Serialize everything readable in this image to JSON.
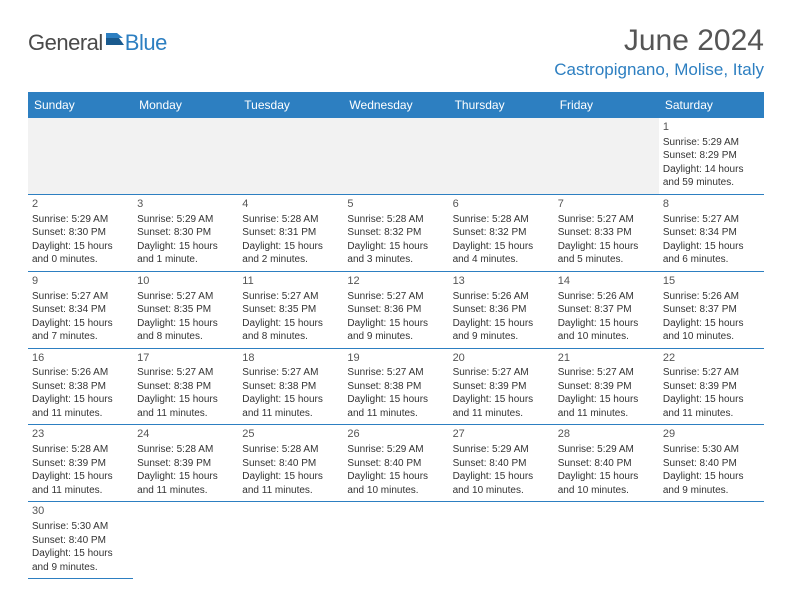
{
  "logo": {
    "word1": "General",
    "word2": "Blue"
  },
  "title": "June 2024",
  "location": "Castropignano, Molise, Italy",
  "colors": {
    "header_bg": "#2d7fc1",
    "header_text": "#ffffff",
    "border": "#2d7fc1",
    "offrow_bg": "#f2f2f2",
    "text": "#333333",
    "brand_blue": "#2d7fc1",
    "brand_gray": "#4a4a4a"
  },
  "day_headers": [
    "Sunday",
    "Monday",
    "Tuesday",
    "Wednesday",
    "Thursday",
    "Friday",
    "Saturday"
  ],
  "weeks": [
    [
      null,
      null,
      null,
      null,
      null,
      null,
      {
        "n": "1",
        "sr": "Sunrise: 5:29 AM",
        "ss": "Sunset: 8:29 PM",
        "dl": "Daylight: 14 hours and 59 minutes."
      }
    ],
    [
      {
        "n": "2",
        "sr": "Sunrise: 5:29 AM",
        "ss": "Sunset: 8:30 PM",
        "dl": "Daylight: 15 hours and 0 minutes."
      },
      {
        "n": "3",
        "sr": "Sunrise: 5:29 AM",
        "ss": "Sunset: 8:30 PM",
        "dl": "Daylight: 15 hours and 1 minute."
      },
      {
        "n": "4",
        "sr": "Sunrise: 5:28 AM",
        "ss": "Sunset: 8:31 PM",
        "dl": "Daylight: 15 hours and 2 minutes."
      },
      {
        "n": "5",
        "sr": "Sunrise: 5:28 AM",
        "ss": "Sunset: 8:32 PM",
        "dl": "Daylight: 15 hours and 3 minutes."
      },
      {
        "n": "6",
        "sr": "Sunrise: 5:28 AM",
        "ss": "Sunset: 8:32 PM",
        "dl": "Daylight: 15 hours and 4 minutes."
      },
      {
        "n": "7",
        "sr": "Sunrise: 5:27 AM",
        "ss": "Sunset: 8:33 PM",
        "dl": "Daylight: 15 hours and 5 minutes."
      },
      {
        "n": "8",
        "sr": "Sunrise: 5:27 AM",
        "ss": "Sunset: 8:34 PM",
        "dl": "Daylight: 15 hours and 6 minutes."
      }
    ],
    [
      {
        "n": "9",
        "sr": "Sunrise: 5:27 AM",
        "ss": "Sunset: 8:34 PM",
        "dl": "Daylight: 15 hours and 7 minutes."
      },
      {
        "n": "10",
        "sr": "Sunrise: 5:27 AM",
        "ss": "Sunset: 8:35 PM",
        "dl": "Daylight: 15 hours and 8 minutes."
      },
      {
        "n": "11",
        "sr": "Sunrise: 5:27 AM",
        "ss": "Sunset: 8:35 PM",
        "dl": "Daylight: 15 hours and 8 minutes."
      },
      {
        "n": "12",
        "sr": "Sunrise: 5:27 AM",
        "ss": "Sunset: 8:36 PM",
        "dl": "Daylight: 15 hours and 9 minutes."
      },
      {
        "n": "13",
        "sr": "Sunrise: 5:26 AM",
        "ss": "Sunset: 8:36 PM",
        "dl": "Daylight: 15 hours and 9 minutes."
      },
      {
        "n": "14",
        "sr": "Sunrise: 5:26 AM",
        "ss": "Sunset: 8:37 PM",
        "dl": "Daylight: 15 hours and 10 minutes."
      },
      {
        "n": "15",
        "sr": "Sunrise: 5:26 AM",
        "ss": "Sunset: 8:37 PM",
        "dl": "Daylight: 15 hours and 10 minutes."
      }
    ],
    [
      {
        "n": "16",
        "sr": "Sunrise: 5:26 AM",
        "ss": "Sunset: 8:38 PM",
        "dl": "Daylight: 15 hours and 11 minutes."
      },
      {
        "n": "17",
        "sr": "Sunrise: 5:27 AM",
        "ss": "Sunset: 8:38 PM",
        "dl": "Daylight: 15 hours and 11 minutes."
      },
      {
        "n": "18",
        "sr": "Sunrise: 5:27 AM",
        "ss": "Sunset: 8:38 PM",
        "dl": "Daylight: 15 hours and 11 minutes."
      },
      {
        "n": "19",
        "sr": "Sunrise: 5:27 AM",
        "ss": "Sunset: 8:38 PM",
        "dl": "Daylight: 15 hours and 11 minutes."
      },
      {
        "n": "20",
        "sr": "Sunrise: 5:27 AM",
        "ss": "Sunset: 8:39 PM",
        "dl": "Daylight: 15 hours and 11 minutes."
      },
      {
        "n": "21",
        "sr": "Sunrise: 5:27 AM",
        "ss": "Sunset: 8:39 PM",
        "dl": "Daylight: 15 hours and 11 minutes."
      },
      {
        "n": "22",
        "sr": "Sunrise: 5:27 AM",
        "ss": "Sunset: 8:39 PM",
        "dl": "Daylight: 15 hours and 11 minutes."
      }
    ],
    [
      {
        "n": "23",
        "sr": "Sunrise: 5:28 AM",
        "ss": "Sunset: 8:39 PM",
        "dl": "Daylight: 15 hours and 11 minutes."
      },
      {
        "n": "24",
        "sr": "Sunrise: 5:28 AM",
        "ss": "Sunset: 8:39 PM",
        "dl": "Daylight: 15 hours and 11 minutes."
      },
      {
        "n": "25",
        "sr": "Sunrise: 5:28 AM",
        "ss": "Sunset: 8:40 PM",
        "dl": "Daylight: 15 hours and 11 minutes."
      },
      {
        "n": "26",
        "sr": "Sunrise: 5:29 AM",
        "ss": "Sunset: 8:40 PM",
        "dl": "Daylight: 15 hours and 10 minutes."
      },
      {
        "n": "27",
        "sr": "Sunrise: 5:29 AM",
        "ss": "Sunset: 8:40 PM",
        "dl": "Daylight: 15 hours and 10 minutes."
      },
      {
        "n": "28",
        "sr": "Sunrise: 5:29 AM",
        "ss": "Sunset: 8:40 PM",
        "dl": "Daylight: 15 hours and 10 minutes."
      },
      {
        "n": "29",
        "sr": "Sunrise: 5:30 AM",
        "ss": "Sunset: 8:40 PM",
        "dl": "Daylight: 15 hours and 9 minutes."
      }
    ],
    [
      {
        "n": "30",
        "sr": "Sunrise: 5:30 AM",
        "ss": "Sunset: 8:40 PM",
        "dl": "Daylight: 15 hours and 9 minutes."
      },
      null,
      null,
      null,
      null,
      null,
      null
    ]
  ]
}
